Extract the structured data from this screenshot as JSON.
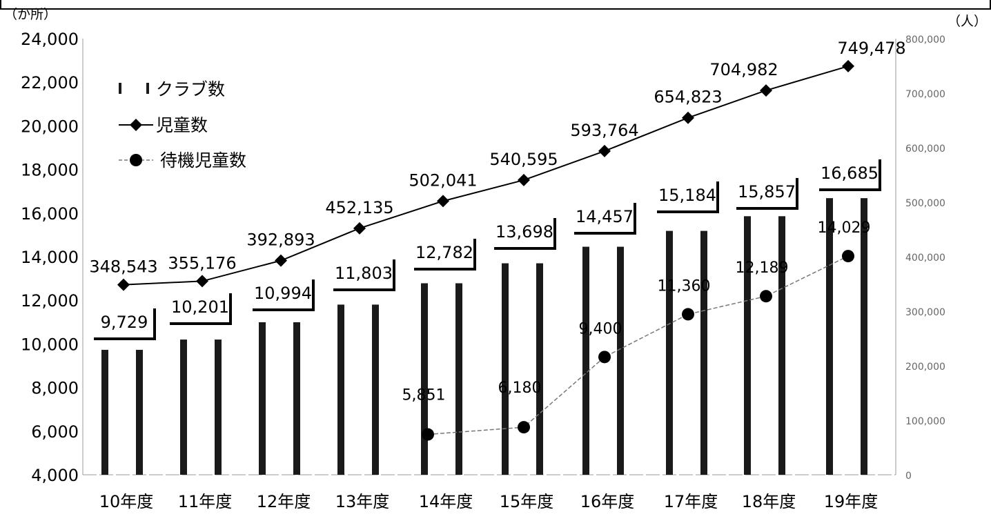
{
  "chart_data": {
    "type": "bar",
    "categories": [
      "10年度",
      "11年度",
      "12年度",
      "13年度",
      "14年度",
      "15年度",
      "16年度",
      "17年度",
      "18年度",
      "19年度"
    ],
    "left_axis": {
      "unit_label": "（か所）",
      "min": 4000,
      "max": 24000,
      "step": 2000,
      "ticks": [
        "4,000",
        "6,000",
        "8,000",
        "10,000",
        "12,000",
        "14,000",
        "16,000",
        "18,000",
        "20,000",
        "22,000",
        "24,000"
      ]
    },
    "right_axis": {
      "unit_label": "（人）",
      "min": 0,
      "max": 800000,
      "step": 100000,
      "ticks": [
        "0",
        "100,000",
        "200,000",
        "300,000",
        "400,000",
        "500,000",
        "600,000",
        "700,000",
        "800,000"
      ]
    },
    "legend": {
      "position": "top-left",
      "items": [
        {
          "label": "クラブ数",
          "kind": "bar"
        },
        {
          "label": "児童数",
          "kind": "line-diamond"
        },
        {
          "label": "待機児童数",
          "kind": "line-circle"
        }
      ]
    },
    "series": [
      {
        "name": "クラブ数",
        "type": "bar",
        "axis": "left",
        "values": [
          9729,
          10201,
          10994,
          11803,
          12782,
          13698,
          14457,
          15184,
          15857,
          16685
        ],
        "labels": [
          "9,729",
          "10,201",
          "10,994",
          "11,803",
          "12,782",
          "13,698",
          "14,457",
          "15,184",
          "15,857",
          "16,685"
        ]
      },
      {
        "name": "児童数",
        "type": "line",
        "axis": "right",
        "marker": "diamond",
        "values": [
          348543,
          355176,
          392893,
          452135,
          502041,
          540595,
          593764,
          654823,
          704982,
          749478
        ],
        "labels": [
          "348,543",
          "355,176",
          "392,893",
          "452,135",
          "502,041",
          "540,595",
          "593,764",
          "654,823",
          "704,982",
          "749,478"
        ]
      },
      {
        "name": "待機児童数",
        "type": "line",
        "axis": "left",
        "marker": "circle",
        "values": [
          null,
          null,
          null,
          null,
          5851,
          6180,
          9400,
          11360,
          12189,
          14029
        ],
        "labels": [
          null,
          null,
          null,
          null,
          "5,851",
          "6,180",
          "9,400",
          "11,360",
          "12,189",
          "14,029"
        ]
      }
    ],
    "colors": {
      "bar": "#1a1a1a",
      "line": "#000000",
      "text": "#000000"
    }
  }
}
